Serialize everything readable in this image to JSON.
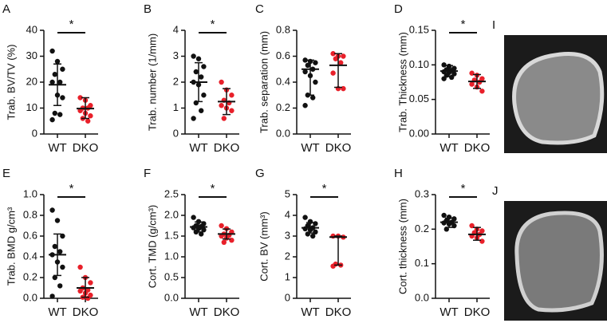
{
  "chart_data": [
    {
      "type": "dotplot",
      "label": "A",
      "ylabel": "Trab. BV/TV (%)",
      "annotation": "*",
      "categories": [
        "WT",
        "DKO"
      ],
      "colors": [
        "#111111",
        "#e8202a"
      ],
      "points": [
        [
          32,
          28,
          25,
          23,
          20,
          20,
          15,
          14,
          8,
          7.5,
          5.5
        ],
        [
          14,
          13,
          11,
          10,
          10,
          9,
          8,
          7,
          6,
          5
        ]
      ],
      "center": [
        19,
        9.8
      ],
      "low": [
        11,
        6
      ],
      "high": [
        27,
        14
      ],
      "ylim": [
        0,
        40
      ],
      "yticks": [
        0,
        10,
        20,
        30,
        40
      ]
    },
    {
      "type": "dotplot",
      "label": "B",
      "ylabel": "Trab. number (1/mm)",
      "annotation": "*",
      "categories": [
        "WT",
        "DKO"
      ],
      "colors": [
        "#111111",
        "#e8202a"
      ],
      "points": [
        [
          3.0,
          2.9,
          2.6,
          2.4,
          2.2,
          2.0,
          1.9,
          1.5,
          1.2,
          0.9,
          0.6
        ],
        [
          2.0,
          1.7,
          1.5,
          1.3,
          1.2,
          1.1,
          1.0,
          0.9,
          0.6
        ]
      ],
      "center": [
        2.0,
        1.25
      ],
      "low": [
        1.25,
        0.75
      ],
      "high": [
        2.75,
        1.75
      ],
      "ylim": [
        0,
        4
      ],
      "yticks": [
        0,
        1,
        2,
        3,
        4
      ]
    },
    {
      "type": "dotplot",
      "label": "C",
      "ylabel": "Trab. separation (mm)",
      "categories": [
        "WT",
        "DKO"
      ],
      "colors": [
        "#111111",
        "#e8202a"
      ],
      "points": [
        [
          0.57,
          0.56,
          0.55,
          0.53,
          0.5,
          0.48,
          0.45,
          0.4,
          0.3,
          0.28,
          0.22
        ],
        [
          0.62,
          0.6,
          0.6,
          0.58,
          0.55,
          0.47,
          0.35,
          0.35
        ]
      ],
      "center": [
        0.5,
        0.53
      ],
      "low": [
        0.3,
        0.36
      ],
      "high": [
        0.57,
        0.62
      ],
      "ylim": [
        0,
        0.8
      ],
      "yticks": [
        {
          "value": 0,
          "label": "0.0"
        },
        0.2,
        0.4,
        0.6,
        0.8
      ]
    },
    {
      "type": "dotplot",
      "label": "D",
      "ylabel": "Trab. Thickness (mm)",
      "annotation": "*",
      "categories": [
        "WT",
        "DKO"
      ],
      "colors": [
        "#111111",
        "#e8202a"
      ],
      "points": [
        [
          0.1,
          0.098,
          0.095,
          0.093,
          0.092,
          0.09,
          0.089,
          0.087,
          0.085,
          0.082,
          0.08
        ],
        [
          0.088,
          0.085,
          0.08,
          0.078,
          0.075,
          0.072,
          0.068,
          0.062
        ]
      ],
      "center": [
        0.091,
        0.076
      ],
      "low": [
        0.083,
        0.066
      ],
      "high": [
        0.099,
        0.086
      ],
      "ylim": [
        0,
        0.15
      ],
      "yticks": [
        {
          "value": 0,
          "label": "0.00"
        },
        {
          "value": 0.05,
          "label": "0.05"
        },
        {
          "value": 0.1,
          "label": "0.10"
        },
        {
          "value": 0.15,
          "label": "0.15"
        }
      ]
    },
    {
      "type": "dotplot",
      "label": "E",
      "ylabel": "Trab. BMD g/cm³",
      "annotation": "*",
      "categories": [
        "WT",
        "DKO"
      ],
      "colors": [
        "#111111",
        "#e8202a"
      ],
      "points": [
        [
          0.85,
          0.75,
          0.6,
          0.5,
          0.45,
          0.42,
          0.35,
          0.3,
          0.2,
          0.12,
          0.02
        ],
        [
          0.3,
          0.2,
          0.15,
          0.1,
          0.08,
          0.07,
          0.05,
          0.03,
          0.01,
          0.0
        ]
      ],
      "center": [
        0.42,
        0.1
      ],
      "low": [
        0.22,
        0.01
      ],
      "high": [
        0.62,
        0.2
      ],
      "ylim": [
        0,
        1
      ],
      "yticks": [
        {
          "value": 0,
          "label": "0.0"
        },
        0.2,
        0.4,
        0.6,
        0.8,
        {
          "value": 1,
          "label": "1.0"
        }
      ]
    },
    {
      "type": "dotplot",
      "label": "F",
      "ylabel": "Cort. TMD (g/cm³)",
      "annotation": "*",
      "categories": [
        "WT",
        "DKO"
      ],
      "colors": [
        "#111111",
        "#e8202a"
      ],
      "points": [
        [
          1.95,
          1.85,
          1.8,
          1.75,
          1.73,
          1.7,
          1.68,
          1.65,
          1.6,
          1.55
        ],
        [
          1.75,
          1.68,
          1.6,
          1.55,
          1.52,
          1.5,
          1.45,
          1.4,
          1.35
        ]
      ],
      "center": [
        1.72,
        1.55
      ],
      "low": [
        1.6,
        1.43
      ],
      "high": [
        1.84,
        1.67
      ],
      "ylim": [
        0,
        2.5
      ],
      "yticks": [
        {
          "value": 0,
          "label": "0.0"
        },
        0.5,
        {
          "value": 1,
          "label": "1.0"
        },
        1.5,
        {
          "value": 2,
          "label": "2.0"
        },
        2.5
      ]
    },
    {
      "type": "dotplot",
      "label": "G",
      "ylabel": "Cort. BV (mm³)",
      "annotation": "*",
      "categories": [
        "WT",
        "DKO"
      ],
      "colors": [
        "#111111",
        "#e8202a"
      ],
      "points": [
        [
          3.9,
          3.7,
          3.6,
          3.5,
          3.4,
          3.35,
          3.3,
          3.2,
          3.1,
          3.0
        ],
        [
          3.0,
          3.0,
          2.95,
          1.65,
          1.6,
          1.55
        ]
      ],
      "center": [
        3.4,
        2.95
      ],
      "low": [
        3.15,
        1.6
      ],
      "high": [
        3.65,
        3.0
      ],
      "ylim": [
        0,
        5
      ],
      "yticks": [
        0,
        1,
        2,
        3,
        4,
        5
      ]
    },
    {
      "type": "dotplot",
      "label": "H",
      "ylabel": "Cort. thickness (mm)",
      "annotation": "*",
      "categories": [
        "WT",
        "DKO"
      ],
      "colors": [
        "#111111",
        "#e8202a"
      ],
      "points": [
        [
          0.24,
          0.235,
          0.23,
          0.225,
          0.22,
          0.218,
          0.215,
          0.21,
          0.2
        ],
        [
          0.21,
          0.2,
          0.195,
          0.19,
          0.185,
          0.18,
          0.175,
          0.165
        ]
      ],
      "center": [
        0.22,
        0.185
      ],
      "low": [
        0.205,
        0.168
      ],
      "high": [
        0.232,
        0.205
      ],
      "ylim": [
        0,
        0.3
      ],
      "yticks": [
        {
          "value": 0,
          "label": "0.0"
        },
        0.1,
        0.2,
        0.3
      ]
    }
  ],
  "images": [
    {
      "label": "I"
    },
    {
      "label": "J"
    }
  ]
}
